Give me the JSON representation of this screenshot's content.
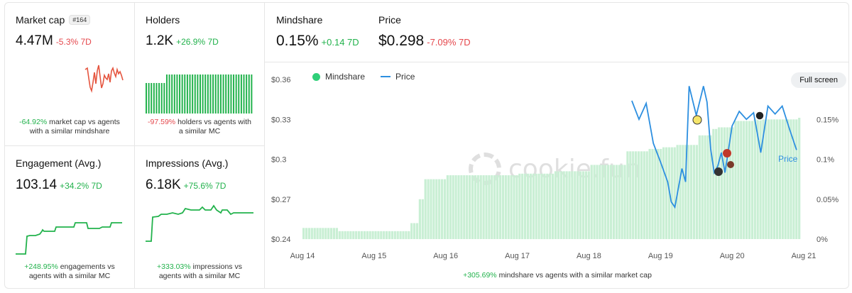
{
  "cards": {
    "market_cap": {
      "title": "Market cap",
      "rank": "#164",
      "value": "4.47M",
      "change": "-5.3% 7D",
      "note_pct": "-64.92%",
      "note_line1": "market cap vs agents",
      "note_line2": "with a similar mindshare"
    },
    "holders": {
      "title": "Holders",
      "value": "1.2K",
      "change": "+26.9% 7D",
      "note_pct": "-97.59%",
      "note_line1": "holders vs agents with",
      "note_line2": "a similar MC"
    },
    "engagement": {
      "title": "Engagement (Avg.)",
      "value": "103.14",
      "change": "+34.2% 7D",
      "note_pct": "+248.95%",
      "note_line1": "engagements vs",
      "note_line2": "agents with a similar MC"
    },
    "impressions": {
      "title": "Impressions (Avg.)",
      "value": "6.18K",
      "change": "+75.6% 7D",
      "note_pct": "+333.03%",
      "note_line1": "impressions vs",
      "note_line2": "agents with a similar MC"
    }
  },
  "main": {
    "mindshare_title": "Mindshare",
    "mindshare_value": "0.15%",
    "mindshare_change": "+0.14 7D",
    "price_title": "Price",
    "price_value": "$0.298",
    "price_change": "-7.09% 7D",
    "legend_mindshare": "Mindshare",
    "legend_price": "Price",
    "fullscreen_label": "Full screen",
    "watermark": "cookie.fun",
    "price_inline_label": "Price",
    "footer_pct": "+305.69%",
    "footer_text": "mindshare vs agents with a similar market cap"
  },
  "colors": {
    "positive": "#22b24c",
    "negative": "#e5484d",
    "mindshare_bar": "#c9efd4",
    "price_line": "#2d8fe0",
    "spark_red": "#e5553f",
    "spark_green": "#22b24c"
  },
  "chart_data": {
    "type": "bar",
    "x_ticks": [
      "Aug 14",
      "Aug 15",
      "Aug 16",
      "Aug 17",
      "Aug 18",
      "Aug 19",
      "Aug 20",
      "Aug 21"
    ],
    "y_left_ticks": [
      "$0.36",
      "$0.33",
      "$0.3",
      "$0.27",
      "$0.24"
    ],
    "y_right_ticks": [
      "0.15%",
      "0.1%",
      "0.05%",
      "0%"
    ],
    "y_left_range": [
      0.24,
      0.36
    ],
    "y_right_range": [
      0,
      0.2
    ],
    "legend_position": "top-left",
    "series": [
      {
        "name": "Mindshare",
        "axis": "right",
        "x_days": [
          14.0,
          14.5,
          15.0,
          15.4,
          15.5,
          15.6,
          15.7,
          16.0,
          16.5,
          17.0,
          17.5,
          18.0,
          18.5,
          18.8,
          19.0,
          19.2,
          19.4,
          19.5,
          19.7,
          19.8,
          20.0,
          20.3,
          20.6,
          20.9
        ],
        "values": [
          0.014,
          0.01,
          0.01,
          0.01,
          0.02,
          0.05,
          0.075,
          0.08,
          0.08,
          0.082,
          0.085,
          0.093,
          0.11,
          0.113,
          0.115,
          0.118,
          0.118,
          0.13,
          0.138,
          0.14,
          0.148,
          0.15,
          0.15,
          0.152
        ]
      },
      {
        "name": "Price",
        "axis": "left",
        "x_days": [
          18.6,
          18.7,
          18.8,
          18.9,
          19.0,
          19.1,
          19.15,
          19.2,
          19.3,
          19.35,
          19.4,
          19.5,
          19.6,
          19.65,
          19.7,
          19.75,
          19.8,
          19.85,
          19.9,
          20.0,
          20.1,
          20.2,
          20.3,
          20.4,
          20.5,
          20.6,
          20.7,
          20.8,
          20.9
        ],
        "values": [
          0.344,
          0.33,
          0.342,
          0.312,
          0.298,
          0.283,
          0.268,
          0.264,
          0.293,
          0.283,
          0.355,
          0.333,
          0.355,
          0.343,
          0.308,
          0.29,
          0.295,
          0.305,
          0.29,
          0.325,
          0.336,
          0.33,
          0.335,
          0.305,
          0.34,
          0.334,
          0.34,
          0.323,
          0.307
        ]
      }
    ]
  }
}
